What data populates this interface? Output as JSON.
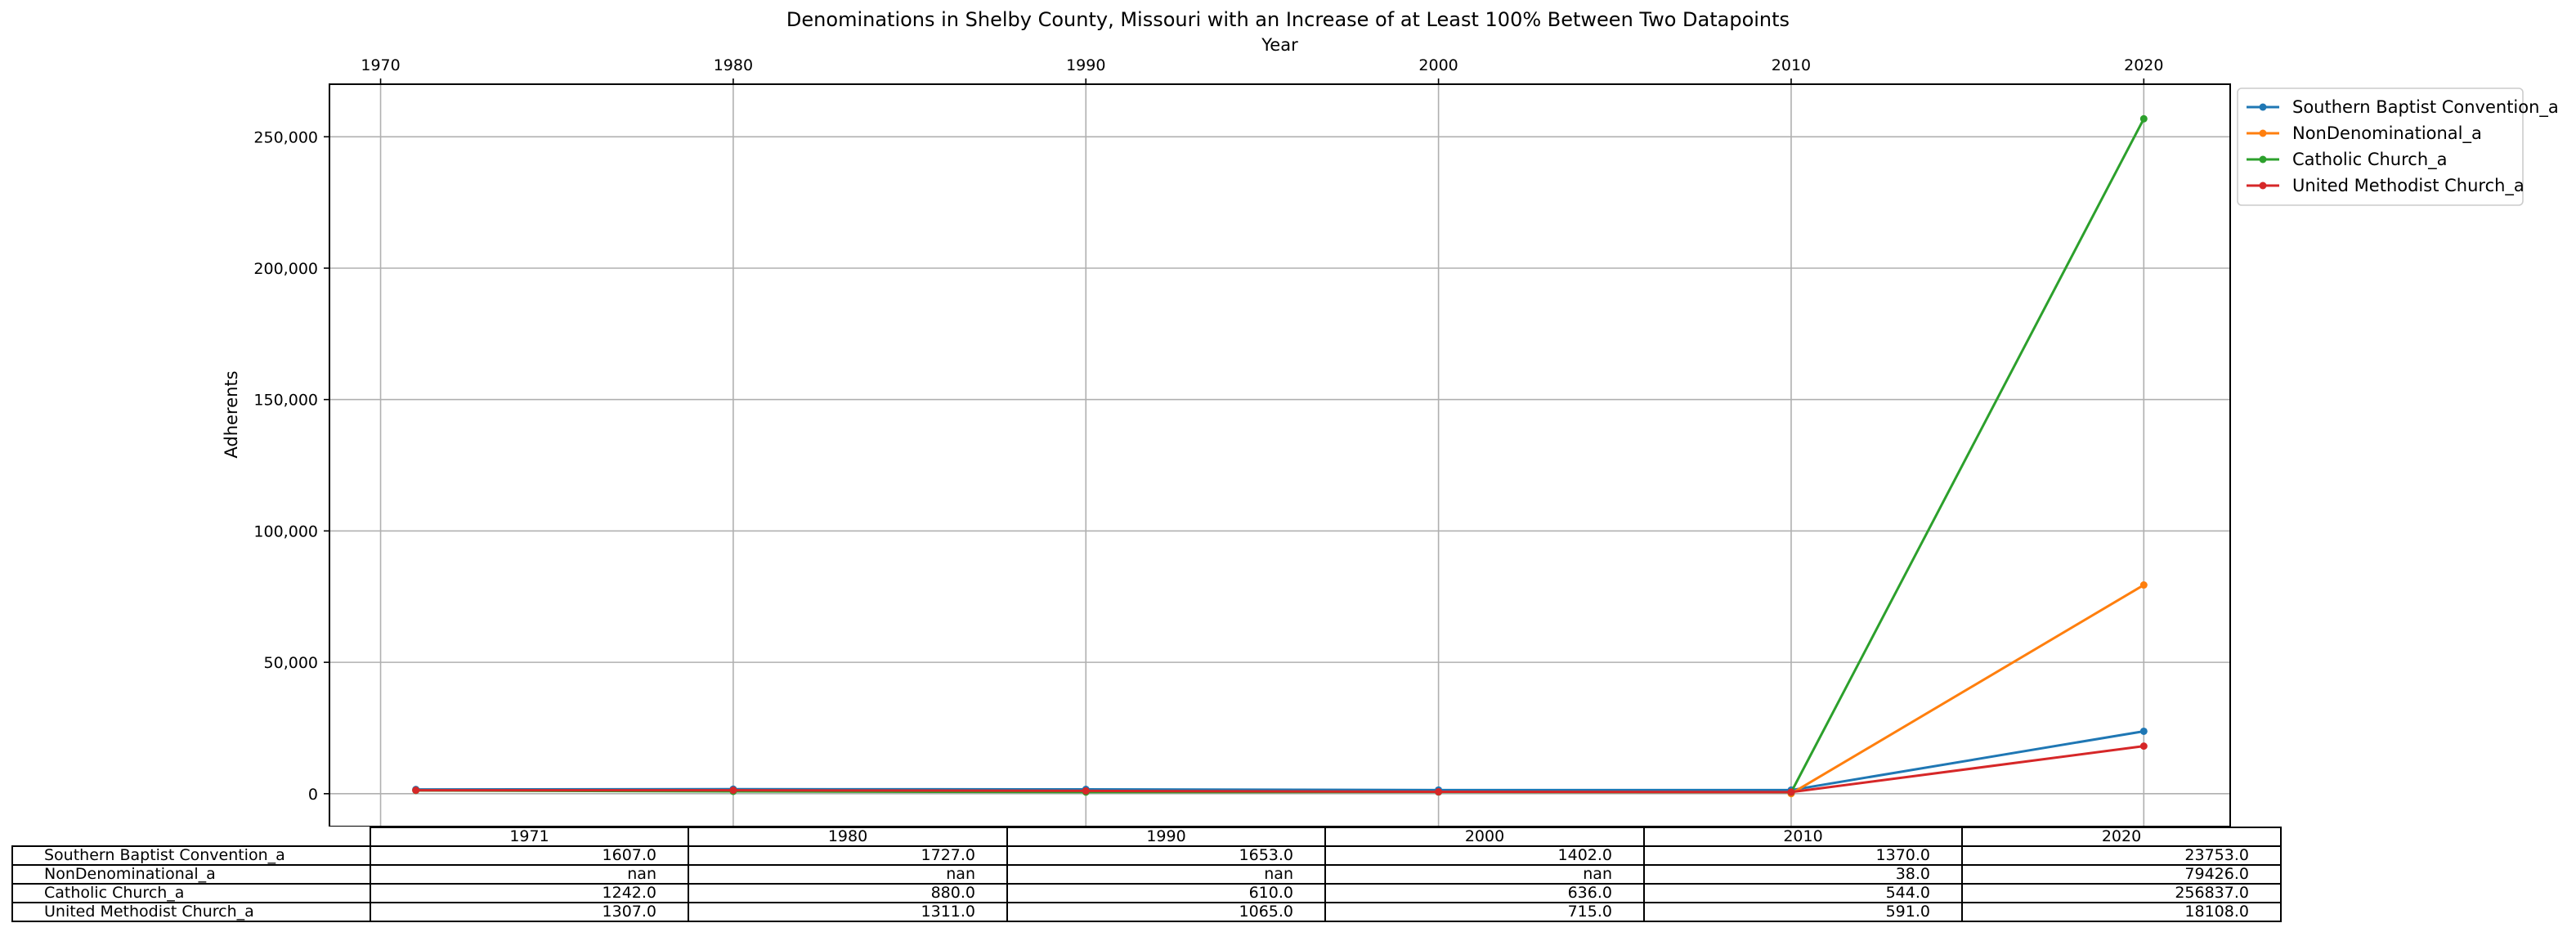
{
  "title": "Denominations in Shelby County, Missouri with an Increase of at Least 100% Between Two Datapoints",
  "chart_data": {
    "type": "line",
    "title": "Denominations in Shelby County, Missouri with an Increase of at Least 100% Between Two Datapoints",
    "xlabel": "Year",
    "ylabel": "Adherents",
    "x": [
      1971,
      1980,
      1990,
      2000,
      2010,
      2020
    ],
    "x_ticks": [
      "1970",
      "1980",
      "1990",
      "2000",
      "2010",
      "2020"
    ],
    "x_tick_values": [
      1970,
      1980,
      1990,
      2000,
      2010,
      2020
    ],
    "y_ticks": [
      "0",
      "50,000",
      "100,000",
      "150,000",
      "200,000",
      "250,000"
    ],
    "y_tick_values": [
      0,
      50000,
      100000,
      150000,
      200000,
      250000
    ],
    "xlim": [
      1968.55,
      2022.45
    ],
    "ylim": [
      -12500,
      270000
    ],
    "grid": true,
    "legend_position": "outside top-right",
    "series": [
      {
        "name": "Southern Baptist Convention_a",
        "color": "#1f77b4",
        "values": [
          1607.0,
          1727.0,
          1653.0,
          1402.0,
          1370.0,
          23753.0
        ]
      },
      {
        "name": "NonDenominational_a",
        "color": "#ff7f0e",
        "values": [
          null,
          null,
          null,
          null,
          38.0,
          79426.0
        ]
      },
      {
        "name": "Catholic Church_a",
        "color": "#2ca02c",
        "values": [
          1242.0,
          880.0,
          610.0,
          636.0,
          544.0,
          256837.0
        ]
      },
      {
        "name": "United Methodist Church_a",
        "color": "#d62728",
        "values": [
          1307.0,
          1311.0,
          1065.0,
          715.0,
          591.0,
          18108.0
        ]
      }
    ]
  },
  "table": {
    "columns": [
      "1971",
      "1980",
      "1990",
      "2000",
      "2010",
      "2020"
    ],
    "rows": [
      {
        "label": "Southern Baptist Convention_a",
        "cells": [
          "1607.0",
          "1727.0",
          "1653.0",
          "1402.0",
          "1370.0",
          "23753.0"
        ]
      },
      {
        "label": "NonDenominational_a",
        "cells": [
          "nan",
          "nan",
          "nan",
          "nan",
          "38.0",
          "79426.0"
        ]
      },
      {
        "label": "Catholic Church_a",
        "cells": [
          "1242.0",
          "880.0",
          "610.0",
          "636.0",
          "544.0",
          "256837.0"
        ]
      },
      {
        "label": "United Methodist Church_a",
        "cells": [
          "1307.0",
          "1311.0",
          "1065.0",
          "715.0",
          "591.0",
          "18108.0"
        ]
      }
    ]
  }
}
